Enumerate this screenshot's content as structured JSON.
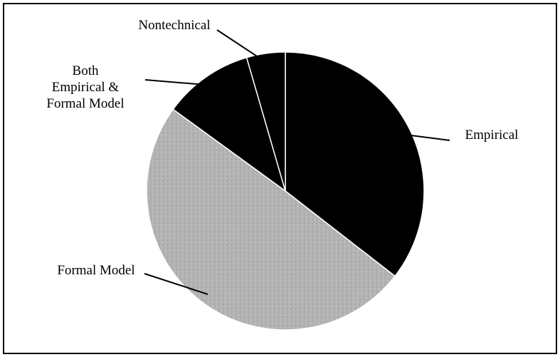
{
  "chart_data": {
    "type": "pie",
    "categories": [
      "Empirical",
      "Formal Model",
      "Both\nEmpirical &\nFormal Model",
      "Nontechnical"
    ],
    "values": [
      35.5,
      49.5,
      10.5,
      4.5
    ],
    "colors": [
      "#000000",
      "#b4b4b4",
      "#000000",
      "#000000"
    ]
  }
}
